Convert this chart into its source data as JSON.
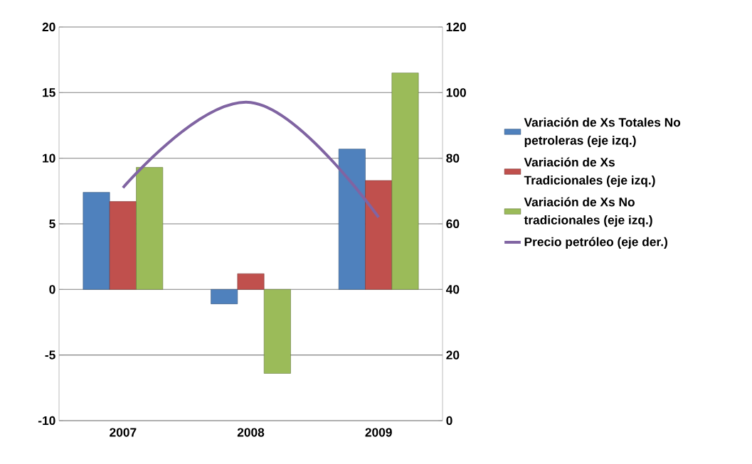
{
  "chart_data": {
    "type": "bar",
    "categories": [
      "2007",
      "2008",
      "2009"
    ],
    "series": [
      {
        "name": "Variación de Xs Totales No petroleras (eje izq.)",
        "color": "#4f81bd",
        "values": [
          7.4,
          -1.1,
          10.7
        ]
      },
      {
        "name": "Variación de Xs Tradicionales (eje izq.)",
        "color": "#c0504d",
        "values": [
          6.7,
          1.2,
          8.3
        ]
      },
      {
        "name": "Variación de Xs No tradicionales (eje izq.)",
        "color": "#9bbb59",
        "values": [
          9.3,
          -6.4,
          16.5
        ]
      },
      {
        "name": "Precio petróleo (eje der.)",
        "type": "line",
        "axis": "y2",
        "color": "#8064a2",
        "values": [
          71,
          97,
          62
        ]
      }
    ],
    "ylim": [
      -10,
      20
    ],
    "yticks": [
      -10,
      -5,
      0,
      5,
      10,
      15,
      20
    ],
    "y2lim": [
      0,
      120
    ],
    "y2ticks": [
      0,
      20,
      40,
      60,
      80,
      100,
      120
    ],
    "grid": "y",
    "legend": "right"
  }
}
